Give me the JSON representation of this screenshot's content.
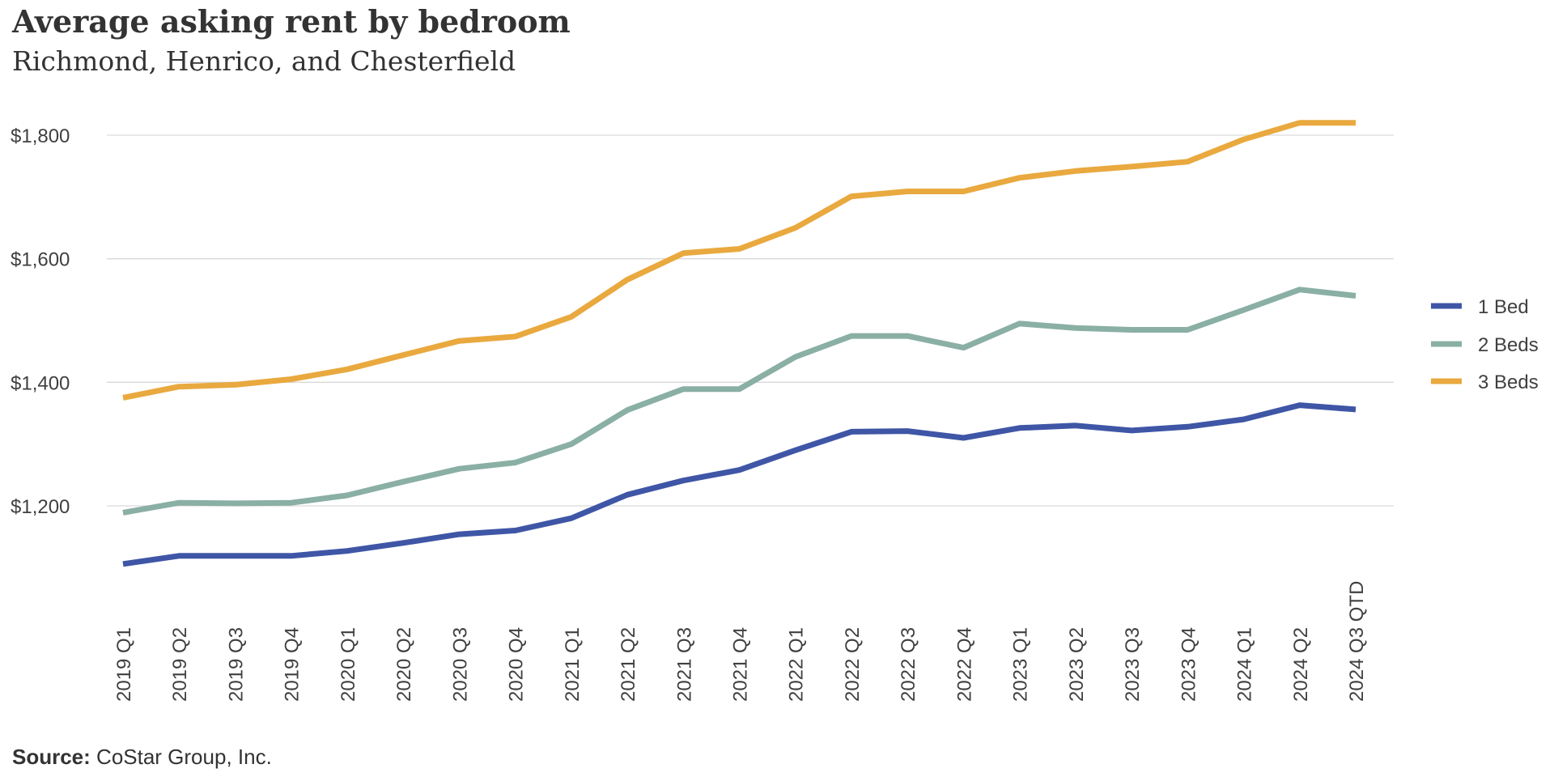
{
  "chart_data": {
    "type": "line",
    "title": "Average asking rent by bedroom",
    "subtitle": "Richmond, Henrico, and Chesterfield",
    "xlabel": "",
    "ylabel": "",
    "categories": [
      "2019 Q1",
      "2019 Q2",
      "2019 Q3",
      "2019 Q4",
      "2020 Q1",
      "2020 Q2",
      "2020 Q3",
      "2020 Q4",
      "2021 Q1",
      "2021 Q2",
      "2021 Q3",
      "2021 Q4",
      "2022 Q1",
      "2022 Q2",
      "2022 Q3",
      "2022 Q4",
      "2023 Q1",
      "2023 Q2",
      "2023 Q3",
      "2023 Q4",
      "2024 Q1",
      "2024 Q2",
      "2024 Q3 QTD"
    ],
    "ylim": [
      1050,
      1850
    ],
    "yticks": [
      1200,
      1400,
      1600,
      1800
    ],
    "ytick_labels": [
      "$1,200",
      "$1,400",
      "$1,600",
      "$1,800"
    ],
    "grid": true,
    "legend_position": "right",
    "series": [
      {
        "name": "1 Bed",
        "color": "#3f56a6",
        "values": [
          1106,
          1119,
          1119,
          1119,
          1127,
          1140,
          1154,
          1160,
          1180,
          1218,
          1241,
          1258,
          1290,
          1320,
          1321,
          1310,
          1326,
          1330,
          1322,
          1328,
          1340,
          1363,
          1356
        ]
      },
      {
        "name": "2 Beds",
        "color": "#8aafa5",
        "values": [
          1189,
          1205,
          1204,
          1205,
          1217,
          1239,
          1260,
          1270,
          1300,
          1355,
          1389,
          1389,
          1441,
          1475,
          1475,
          1456,
          1495,
          1488,
          1485,
          1485,
          1517,
          1550,
          1540
        ]
      },
      {
        "name": "3 Beds",
        "color": "#e9a93f",
        "values": [
          1375,
          1393,
          1396,
          1405,
          1421,
          1444,
          1467,
          1474,
          1506,
          1566,
          1609,
          1616,
          1650,
          1701,
          1709,
          1709,
          1731,
          1742,
          1749,
          1757,
          1793,
          1820,
          1820
        ]
      }
    ]
  },
  "source": {
    "label": "Source:",
    "text": " CoStar Group, Inc."
  }
}
